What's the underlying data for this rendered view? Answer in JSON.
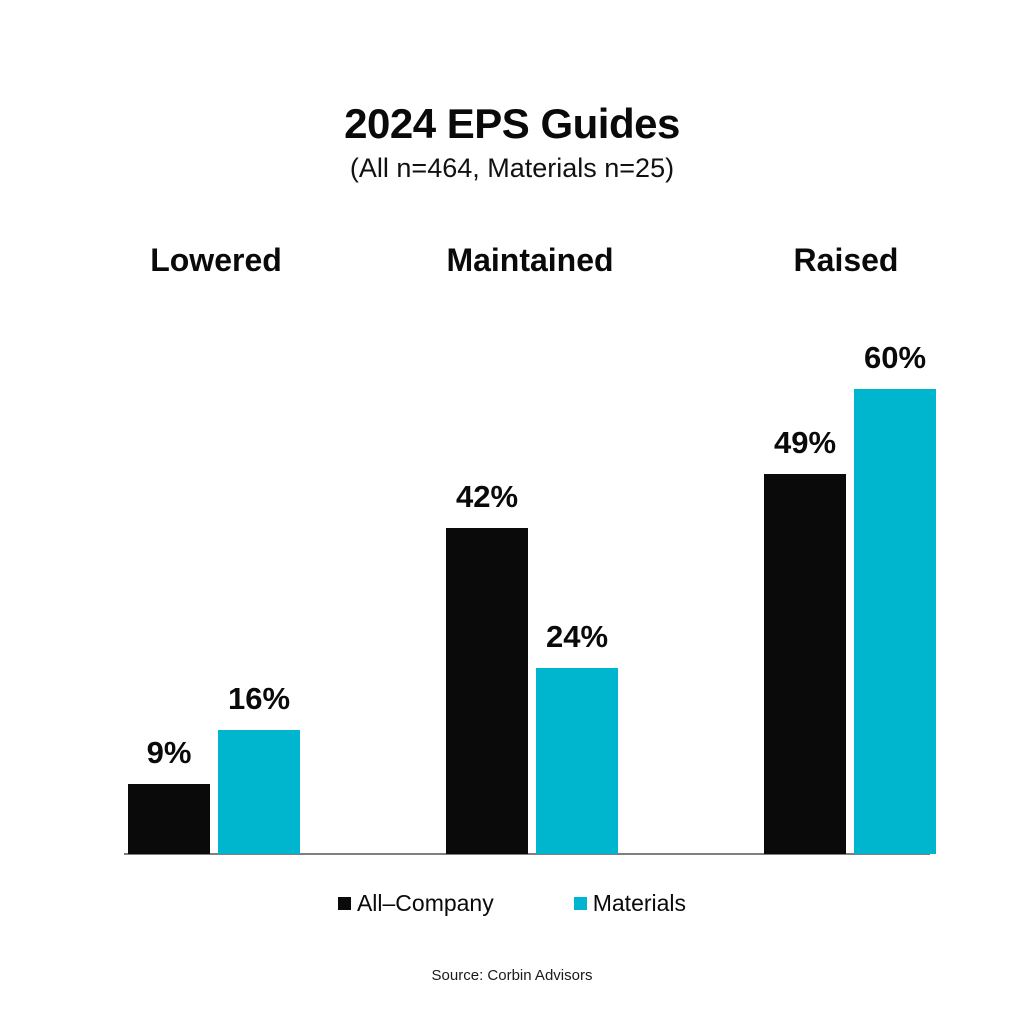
{
  "header": {
    "title": "2024 EPS Guides",
    "subtitle": "(All n=464, Materials n=25)"
  },
  "chart_data": {
    "type": "bar",
    "title": "2024 EPS Guides",
    "subtitle": "(All n=464, Materials n=25)",
    "categories": [
      "Lowered",
      "Maintained",
      "Raised"
    ],
    "series": [
      {
        "name": "All–Company",
        "color": "#0a0a0a",
        "values": [
          9,
          42,
          49
        ]
      },
      {
        "name": "Materials",
        "color": "#00B5CE",
        "values": [
          16,
          24,
          60
        ]
      }
    ],
    "labels": [
      [
        "9%",
        "16%"
      ],
      [
        "42%",
        "24%"
      ],
      [
        "49%",
        "60%"
      ]
    ],
    "xlabel": "",
    "ylabel": "",
    "ylim": [
      0,
      62
    ],
    "grid": false,
    "value_labels_shown": true,
    "legend_position": "bottom",
    "axis_line_color": "#7f7f7f",
    "background_color": "#ffffff"
  },
  "footer": {
    "source": "Source: Corbin Advisors"
  }
}
